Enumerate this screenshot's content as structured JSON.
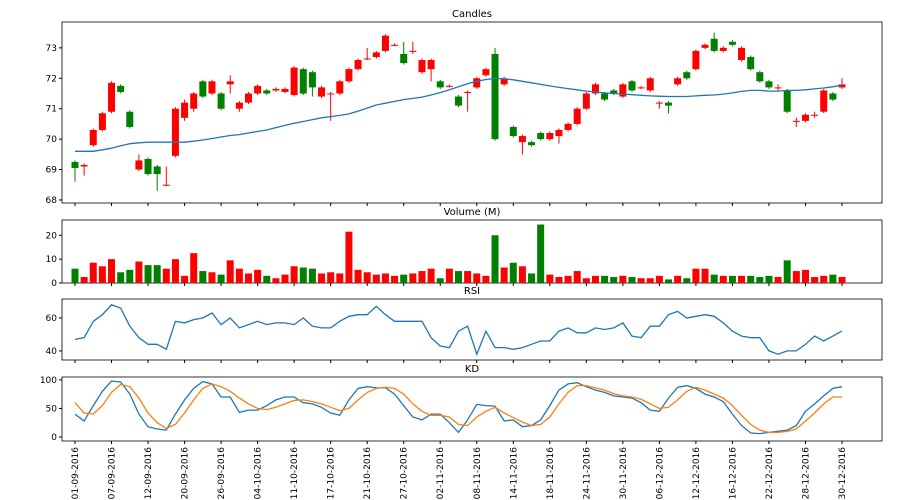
{
  "chart_data": [
    {
      "type": "candlestick",
      "title": "Candles",
      "open": [
        69.25,
        69.1,
        69.8,
        70.3,
        70.9,
        71.75,
        70.9,
        69.0,
        69.35,
        69.1,
        68.5,
        69.45,
        70.7,
        71.0,
        71.9,
        71.5,
        71.5,
        71.8,
        71.0,
        71.2,
        71.5,
        71.6,
        71.6,
        71.55,
        71.45,
        72.3,
        72.2,
        71.4,
        71.5,
        71.5,
        71.9,
        72.3,
        72.65,
        72.7,
        72.9,
        73.1,
        72.8,
        72.9,
        72.2,
        72.3,
        71.9,
        71.75,
        71.4,
        71.55,
        71.7,
        72.1,
        72.8,
        71.8,
        70.4,
        69.9,
        69.9,
        70.2,
        70.0,
        70.1,
        70.3,
        70.5,
        71.0,
        71.5,
        71.5,
        71.6,
        71.4,
        71.9,
        71.7,
        71.6,
        71.2,
        71.2,
        71.8,
        72.2,
        72.3,
        73.0,
        73.3,
        72.9,
        73.2,
        72.6,
        72.7,
        72.2,
        71.9,
        71.7,
        71.6,
        70.6,
        70.6,
        70.8,
        70.9,
        71.5,
        71.7
      ],
      "close": [
        69.05,
        69.15,
        70.3,
        70.85,
        71.85,
        71.55,
        70.4,
        69.3,
        68.85,
        68.85,
        68.5,
        71.0,
        71.2,
        71.5,
        71.4,
        71.9,
        71.0,
        71.9,
        71.2,
        71.5,
        71.75,
        71.5,
        71.65,
        71.65,
        72.35,
        71.5,
        71.7,
        71.7,
        71.5,
        71.9,
        72.3,
        72.6,
        72.65,
        72.85,
        73.4,
        73.1,
        72.5,
        72.9,
        72.6,
        72.6,
        71.7,
        71.75,
        71.1,
        71.55,
        72.0,
        72.3,
        70.0,
        72.0,
        70.1,
        70.1,
        69.8,
        70.0,
        70.2,
        70.3,
        70.5,
        71.0,
        71.5,
        71.8,
        71.3,
        71.5,
        71.8,
        71.6,
        71.7,
        72.0,
        71.2,
        71.1,
        72.0,
        72.0,
        72.9,
        73.1,
        72.9,
        73.0,
        73.1,
        73.0,
        72.3,
        71.9,
        71.7,
        71.7,
        70.9,
        70.6,
        70.8,
        70.8,
        71.6,
        71.3,
        71.8
      ],
      "high": [
        69.3,
        69.2,
        70.35,
        70.9,
        71.9,
        71.8,
        70.95,
        69.5,
        69.4,
        69.15,
        69.1,
        71.05,
        71.3,
        71.55,
        71.95,
        71.95,
        71.55,
        72.1,
        71.25,
        71.55,
        71.8,
        71.65,
        71.7,
        71.7,
        72.4,
        72.35,
        72.25,
        71.75,
        71.55,
        71.95,
        72.35,
        72.65,
        73.0,
        72.9,
        73.45,
        73.15,
        73.2,
        73.2,
        72.65,
        72.65,
        71.95,
        71.8,
        71.45,
        71.6,
        72.05,
        72.35,
        73.0,
        72.05,
        70.45,
        70.15,
        69.95,
        70.25,
        70.25,
        70.35,
        70.55,
        71.05,
        71.55,
        71.85,
        71.55,
        71.65,
        71.85,
        71.95,
        71.75,
        72.05,
        71.25,
        71.25,
        72.05,
        72.25,
        72.95,
        73.15,
        73.5,
        73.05,
        73.25,
        73.05,
        72.75,
        72.25,
        71.95,
        71.8,
        71.65,
        70.7,
        70.85,
        70.9,
        71.65,
        71.55,
        72.0
      ],
      "low": [
        68.6,
        68.8,
        69.75,
        70.25,
        70.85,
        71.5,
        70.35,
        68.95,
        68.8,
        68.3,
        68.45,
        69.4,
        70.6,
        70.9,
        71.35,
        71.45,
        70.95,
        71.5,
        70.9,
        71.15,
        71.45,
        71.45,
        71.55,
        71.5,
        71.4,
        71.45,
        71.4,
        71.35,
        70.6,
        71.45,
        71.85,
        72.25,
        72.6,
        72.65,
        72.85,
        73.05,
        72.45,
        72.8,
        72.15,
        71.9,
        71.65,
        71.7,
        71.05,
        70.9,
        71.65,
        72.05,
        69.95,
        71.75,
        70.05,
        69.5,
        69.75,
        69.95,
        69.95,
        69.85,
        70.25,
        70.45,
        70.95,
        71.45,
        71.25,
        71.45,
        71.35,
        71.55,
        71.65,
        71.55,
        71.0,
        70.85,
        71.75,
        71.95,
        72.25,
        72.95,
        72.85,
        72.85,
        73.05,
        72.55,
        72.25,
        71.85,
        71.65,
        71.6,
        70.85,
        70.4,
        70.55,
        70.7,
        70.85,
        71.25,
        71.65
      ],
      "up_color": "#ff0000",
      "down_color": "#008000",
      "ma": {
        "color": "#1f77b4",
        "values": [
          69.6,
          69.6,
          69.6,
          69.65,
          69.7,
          69.78,
          69.85,
          69.88,
          69.9,
          69.9,
          69.9,
          69.9,
          69.9,
          69.93,
          69.97,
          70.02,
          70.07,
          70.12,
          70.15,
          70.2,
          70.25,
          70.3,
          70.38,
          70.45,
          70.52,
          70.58,
          70.64,
          70.7,
          70.74,
          70.78,
          70.83,
          70.92,
          71.02,
          71.12,
          71.18,
          71.24,
          71.3,
          71.34,
          71.38,
          71.45,
          71.53,
          71.62,
          71.72,
          71.82,
          71.9,
          71.96,
          72.0,
          71.98,
          71.95,
          71.9,
          71.85,
          71.8,
          71.75,
          71.7,
          71.66,
          71.62,
          71.58,
          71.55,
          71.52,
          71.5,
          71.48,
          71.46,
          71.44,
          71.42,
          71.41,
          71.4,
          71.4,
          71.4,
          71.42,
          71.44,
          71.45,
          71.48,
          71.52,
          71.57,
          71.6,
          71.6,
          71.58,
          71.58,
          71.6,
          71.6,
          71.62,
          71.65,
          71.68,
          71.72,
          71.78
        ]
      },
      "ylim": [
        67.9,
        73.85
      ],
      "yticks": [
        68,
        69,
        70,
        71,
        72,
        73
      ]
    },
    {
      "type": "bar",
      "title": "Volume (M)",
      "values": [
        6,
        2.5,
        8.5,
        7,
        10,
        4.5,
        5.5,
        9,
        7.5,
        7.5,
        6,
        10,
        3,
        12.5,
        5,
        4.5,
        3.5,
        9.5,
        6,
        4,
        5.5,
        3,
        2,
        3.5,
        7,
        6.5,
        6,
        4,
        4.5,
        4,
        21.5,
        5.5,
        4.5,
        3.5,
        4,
        3,
        3.5,
        4,
        5,
        6,
        2,
        6,
        5,
        5,
        4,
        3,
        20,
        6.5,
        8.5,
        7,
        4,
        24.5,
        3.5,
        2.5,
        3,
        5,
        2,
        3,
        3,
        2.5,
        3,
        2.5,
        2,
        2,
        3,
        1.5,
        3,
        2,
        6,
        6,
        3.5,
        3,
        3,
        3,
        3,
        2.5,
        3,
        2.5,
        9.5,
        5,
        5.5,
        2.5,
        3,
        3.5,
        2.5
      ],
      "ylim": [
        0,
        26.4
      ],
      "yticks": [
        0,
        10,
        20
      ]
    },
    {
      "type": "line",
      "title": "RSI",
      "series": [
        {
          "color": "#1f77b4",
          "values": [
            47,
            48,
            58,
            62,
            68,
            66,
            55,
            48,
            44,
            44,
            41,
            58,
            57,
            59,
            60,
            63,
            56,
            60,
            54,
            56,
            58,
            56,
            57,
            57,
            56,
            60,
            55,
            54,
            54,
            58,
            61,
            62,
            62,
            67,
            62,
            58,
            58,
            58,
            58,
            48,
            43,
            42,
            52,
            55,
            38,
            52,
            42,
            42,
            41,
            42,
            44,
            46,
            46,
            52,
            54,
            51,
            51,
            54,
            53,
            54,
            57,
            49,
            48,
            55,
            55,
            62,
            64,
            60,
            61,
            62,
            61,
            57,
            52,
            49,
            48,
            48,
            40,
            38,
            40,
            40,
            44,
            49,
            46,
            49,
            52
          ]
        }
      ],
      "ylim": [
        34.5,
        71.5
      ],
      "yticks": [
        40,
        60
      ]
    },
    {
      "type": "line",
      "title": "KD",
      "series": [
        {
          "color": "#1f77b4",
          "values": [
            40,
            28,
            55,
            80,
            98,
            96,
            75,
            40,
            18,
            14,
            12,
            40,
            65,
            85,
            97,
            93,
            70,
            70,
            43,
            47,
            47,
            55,
            65,
            70,
            70,
            60,
            58,
            52,
            42,
            38,
            65,
            85,
            88,
            86,
            86,
            75,
            55,
            35,
            30,
            40,
            40,
            25,
            8,
            30,
            57,
            55,
            54,
            28,
            30,
            18,
            20,
            30,
            55,
            82,
            93,
            95,
            88,
            82,
            78,
            72,
            70,
            68,
            60,
            47,
            45,
            68,
            87,
            90,
            85,
            75,
            70,
            62,
            40,
            20,
            7,
            6,
            8,
            10,
            12,
            20,
            45,
            58,
            72,
            85,
            88
          ]
        },
        {
          "color": "#ff7f0e",
          "values": [
            60,
            42,
            40,
            55,
            78,
            92,
            88,
            68,
            42,
            25,
            15,
            22,
            42,
            65,
            85,
            93,
            88,
            80,
            68,
            58,
            50,
            48,
            52,
            58,
            64,
            65,
            62,
            58,
            52,
            46,
            50,
            65,
            78,
            85,
            87,
            85,
            75,
            58,
            45,
            38,
            38,
            35,
            22,
            20,
            35,
            45,
            52,
            42,
            34,
            26,
            20,
            22,
            35,
            58,
            78,
            90,
            90,
            86,
            82,
            76,
            72,
            70,
            66,
            58,
            50,
            52,
            65,
            80,
            87,
            82,
            75,
            68,
            55,
            38,
            22,
            12,
            8,
            8,
            10,
            14,
            28,
            42,
            58,
            70,
            70
          ]
        }
      ],
      "ylim": [
        -7,
        105
      ],
      "yticks": [
        0,
        50,
        100
      ],
      "categories": [
        "01-09-2016",
        null,
        null,
        null,
        "07-09-2016",
        null,
        null,
        null,
        "12-09-2016",
        null,
        null,
        null,
        "20-09-2016",
        null,
        null,
        null,
        "26-09-2016",
        null,
        null,
        null,
        "04-10-2016",
        null,
        null,
        null,
        "11-10-2016",
        null,
        null,
        null,
        "17-10-2016",
        null,
        null,
        null,
        "21-10-2016",
        null,
        null,
        null,
        "27-10-2016",
        null,
        null,
        null,
        "02-11-2016",
        null,
        null,
        null,
        "08-11-2016",
        null,
        null,
        null,
        "14-11-2016",
        null,
        null,
        null,
        "18-11-2016",
        null,
        null,
        null,
        "24-11-2016",
        null,
        null,
        null,
        "30-11-2016",
        null,
        null,
        null,
        "06-12-2016",
        null,
        null,
        null,
        "12-12-2016",
        null,
        null,
        null,
        "16-12-2016",
        null,
        null,
        null,
        "22-12-2016",
        null,
        null,
        null,
        "28-12-2016",
        null,
        null,
        null,
        "30-12-2016"
      ]
    }
  ]
}
